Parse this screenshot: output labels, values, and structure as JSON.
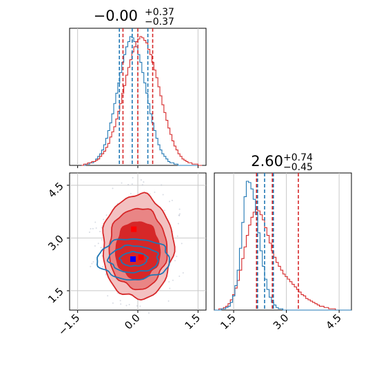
{
  "chart_data": {
    "type": "corner",
    "colors": {
      "red": "#d62728",
      "blue": "#1f77b4",
      "grid": "#c8c8c8"
    },
    "series": [
      {
        "color": "#d62728",
        "kind": "wide"
      },
      {
        "color": "#1f77b4",
        "kind": "narrow"
      }
    ],
    "panels": [
      {
        "id": "hist-x",
        "type": "step-histogram",
        "title": {
          "main": "−0.00",
          "sup": "+0.37",
          "sub": "−0.37"
        },
        "xlim": [
          -1.7,
          1.7
        ],
        "bin_edges_range": [
          -1.4,
          1.6
        ],
        "quantile_lines": {
          "red": [
            -0.37,
            0.0,
            0.37
          ],
          "blue": [
            -0.46,
            -0.14,
            0.25
          ]
        },
        "counts": {
          "red": [
            0,
            1,
            1,
            2,
            2,
            3,
            3,
            4,
            5,
            7,
            9,
            11,
            14,
            17,
            22,
            26,
            30,
            36,
            42,
            48,
            56,
            62,
            70,
            76,
            82,
            88,
            92,
            96,
            98,
            100,
            99,
            97,
            95,
            90,
            86,
            80,
            74,
            68,
            61,
            54,
            47,
            41,
            35,
            29,
            24,
            19,
            15,
            12,
            9,
            7,
            5,
            4,
            3,
            2,
            2,
            1,
            1,
            1,
            0,
            0
          ],
          "blue": [
            0,
            0,
            1,
            1,
            2,
            2,
            3,
            5,
            7,
            9,
            12,
            16,
            21,
            27,
            33,
            40,
            48,
            56,
            64,
            72,
            80,
            86,
            92,
            96,
            100,
            99,
            96,
            92,
            86,
            80,
            72,
            64,
            56,
            48,
            40,
            33,
            27,
            21,
            16,
            12,
            9,
            7,
            5,
            3,
            2,
            2,
            1,
            1,
            0,
            0,
            0,
            0,
            0,
            0,
            0,
            0,
            0,
            0,
            0,
            0
          ]
        }
      },
      {
        "id": "hist-y",
        "type": "step-histogram",
        "title": {
          "main": "2.60",
          "sup": "+0.74",
          "sub": "−0.45"
        },
        "xlim": [
          0.95,
          4.85
        ],
        "bin_edges_range": [
          0.95,
          4.85
        ],
        "ticks": [
          1.5,
          3.0,
          4.5
        ],
        "quantile_lines": {
          "red": [
            2.15,
            2.6,
            3.34
          ],
          "blue": [
            2.18,
            2.38,
            2.63
          ]
        },
        "counts": {
          "red": [
            0,
            0,
            1,
            1,
            2,
            3,
            5,
            8,
            12,
            17,
            23,
            31,
            40,
            49,
            58,
            66,
            72,
            76,
            78,
            77,
            74,
            70,
            64,
            58,
            52,
            46,
            41,
            37,
            34,
            31,
            28,
            26,
            24,
            22,
            20,
            18,
            16,
            14,
            12,
            11,
            9,
            8,
            7,
            6,
            5,
            4,
            3,
            3,
            2,
            2,
            1,
            1,
            1,
            0,
            0,
            0,
            0,
            0,
            0,
            0
          ],
          "blue": [
            0,
            0,
            0,
            1,
            1,
            2,
            3,
            6,
            11,
            19,
            31,
            48,
            68,
            88,
            100,
            99,
            94,
            86,
            74,
            60,
            46,
            34,
            24,
            16,
            10,
            6,
            4,
            2,
            1,
            1,
            0,
            0,
            0,
            0,
            0,
            0,
            0,
            0,
            0,
            0,
            0,
            0,
            0,
            0,
            0,
            0,
            0,
            0,
            0,
            0,
            0,
            0,
            0,
            0,
            0,
            0,
            0,
            0,
            0,
            0
          ]
        }
      },
      {
        "id": "scatter-2d",
        "type": "contour",
        "xlim": [
          -1.7,
          1.7
        ],
        "ylim": [
          0.95,
          4.85
        ],
        "xticks": [
          -1.5,
          0.0,
          1.5
        ],
        "yticks": [
          1.5,
          3.0,
          4.5
        ],
        "contours": {
          "red_filled": [
            {
              "center": [
                0.0,
                2.75
              ],
              "radii": [
                0.88,
                1.48
              ]
            },
            {
              "center": [
                0.0,
                2.7
              ],
              "radii": [
                0.72,
                1.15
              ]
            },
            {
              "center": [
                0.0,
                2.65
              ],
              "radii": [
                0.55,
                0.82
              ]
            }
          ],
          "blue_outline": [
            {
              "center": [
                -0.1,
                2.4
              ],
              "radii": [
                0.9,
                0.58
              ]
            },
            {
              "center": [
                -0.1,
                2.4
              ],
              "radii": [
                0.62,
                0.38
              ]
            },
            {
              "center": [
                -0.1,
                2.4
              ],
              "radii": [
                0.34,
                0.2
              ]
            }
          ]
        },
        "markers": [
          {
            "series": "red",
            "x": -0.1,
            "y": 3.25
          },
          {
            "series": "red",
            "x": 0.08,
            "y": 2.45
          },
          {
            "series": "blue",
            "x": -0.12,
            "y": 2.4
          }
        ]
      }
    ]
  }
}
